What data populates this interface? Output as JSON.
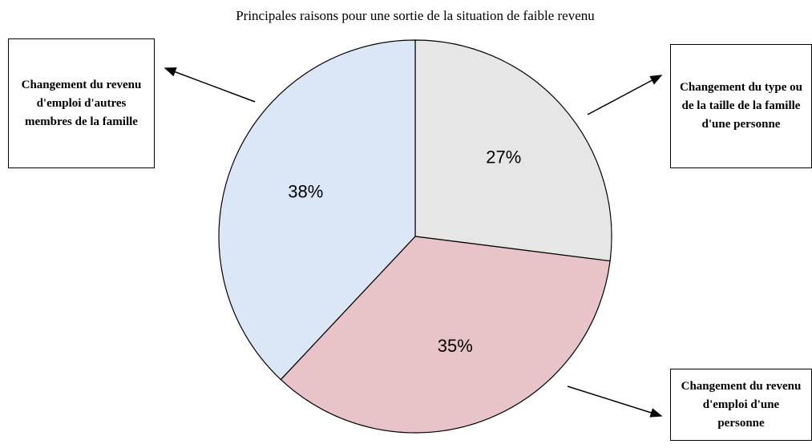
{
  "chart_data": {
    "type": "pie",
    "title": "Principales raisons pour une sortie de la situation de faible revenu",
    "categories": [
      "Changement du type ou de la taille de la famille d'une personne",
      "Changement du revenu d'emploi d'une personne",
      "Changement du revenu d'emploi d'autres membres de la famille"
    ],
    "values": [
      27,
      35,
      38
    ],
    "value_labels": [
      "27%",
      "35%",
      "38%"
    ],
    "colors": [
      "#e6e6e6",
      "#e8c3c7",
      "#dbe7f7"
    ]
  }
}
